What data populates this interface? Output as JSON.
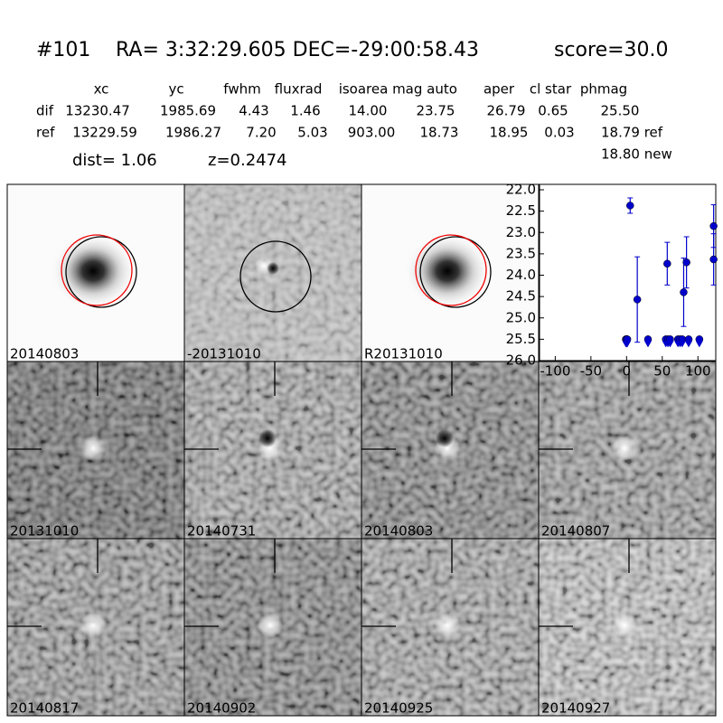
{
  "header": {
    "id": "#101",
    "coords": "RA= 3:32:29.605 DEC=-29:00:58.43",
    "score": "score=30.0"
  },
  "table": {
    "columns": [
      "xc",
      "yc",
      "fwhm",
      "fluxrad",
      "isoarea",
      "mag auto",
      "aper",
      "cl star",
      "phmag"
    ],
    "rows": [
      {
        "label": "dif",
        "cells": [
          "13230.47",
          "1985.69",
          "4.43",
          "1.46",
          "14.00",
          "23.75",
          "26.79",
          "0.65",
          "25.50"
        ]
      },
      {
        "label": "ref",
        "cells": [
          "13229.59",
          "1986.27",
          "7.20",
          "5.03",
          "903.00",
          "18.73",
          "18.95",
          "0.03",
          "18.79 ref"
        ]
      }
    ],
    "extra": "18.80 new"
  },
  "info": {
    "dist": "dist=  1.06",
    "z": "z=0.2474"
  },
  "stamps": [
    {
      "label": "20140803"
    },
    {
      "label": "-20131010"
    },
    {
      "label": "R20131010"
    },
    {
      "label": "20131010"
    },
    {
      "label": "20140731"
    },
    {
      "label": "20140803",
      "label_color": "#ff0000"
    },
    {
      "label": "20140807"
    },
    {
      "label": "20140817"
    },
    {
      "label": "20140902"
    },
    {
      "label": "20140925"
    },
    {
      "label": "20140927"
    }
  ],
  "chart_data": {
    "type": "scatter",
    "invert_y": true,
    "xlim": [
      -122,
      125
    ],
    "ylim": [
      22,
      26
    ],
    "xticks": [
      -100,
      -50,
      0,
      50,
      100
    ],
    "yticks": [
      {
        "value": 22,
        "label": "22.0"
      },
      {
        "value": 22.5,
        "label": "22.5"
      },
      {
        "value": 23,
        "label": "23.0"
      },
      {
        "value": 23.5,
        "label": "23.5"
      },
      {
        "value": 24,
        "label": "24.0"
      },
      {
        "value": 24.5,
        "label": "24.5"
      },
      {
        "value": 25,
        "label": "25.0"
      },
      {
        "value": 25.5,
        "label": "25.5"
      },
      {
        "value": 26,
        "label": "26.0"
      }
    ],
    "series": [
      {
        "color": "#0000cc",
        "marker": "circle",
        "x": [
          5,
          15,
          57,
          80,
          84,
          122,
          122
        ],
        "values": [
          22.37,
          24.57,
          23.73,
          24.4,
          23.7,
          22.85,
          23.63
        ],
        "errors": [
          0.18,
          1.0,
          0.5,
          0.8,
          0.6,
          0.5,
          0.6
        ]
      },
      {
        "color": "#0000cc",
        "marker": "upper-limit",
        "x": [
          -1,
          0,
          1,
          30,
          55,
          58,
          61,
          72,
          75,
          78,
          87,
          102
        ],
        "values": [
          25.5,
          25.5,
          25.5,
          25.5,
          25.5,
          25.5,
          25.5,
          25.5,
          25.5,
          25.5,
          25.5,
          25.5
        ]
      }
    ]
  }
}
